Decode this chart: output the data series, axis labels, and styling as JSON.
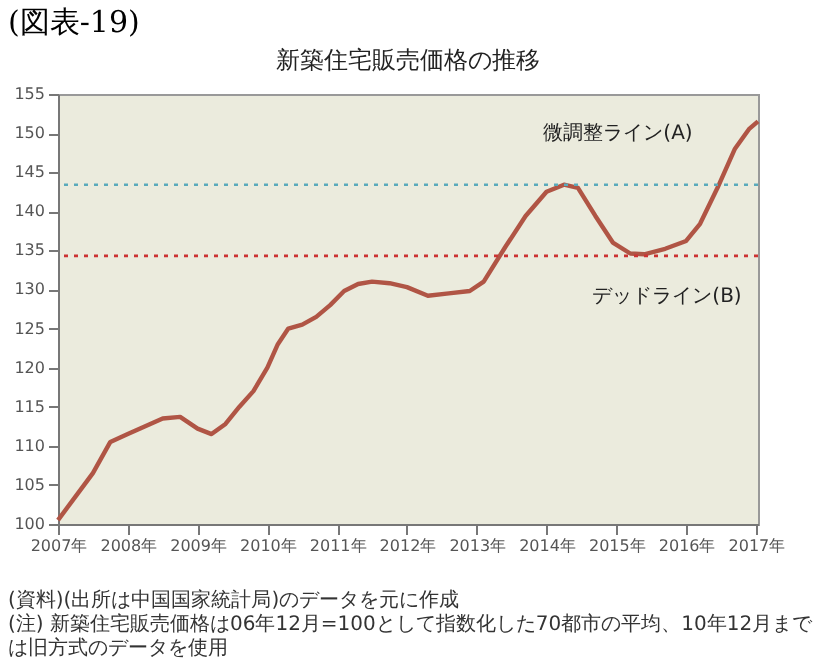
{
  "chart_data": {
    "type": "line",
    "title": "新築住宅販売価格の推移",
    "annotations": [
      "(図表-19)",
      "(資料)(出所は中国国家統計局)のデータを元に作成",
      "(注) 新築住宅販売価格は06年12月=100として指数化した70都市の平均、10年12月までは旧方式のデータを使用"
    ],
    "x": [
      2007.0,
      2007.25,
      2007.5,
      2007.75,
      2008.0,
      2008.25,
      2008.5,
      2008.75,
      2009.0,
      2009.2,
      2009.4,
      2009.6,
      2009.8,
      2010.0,
      2010.15,
      2010.3,
      2010.5,
      2010.7,
      2010.9,
      2011.1,
      2011.3,
      2011.5,
      2011.75,
      2012.0,
      2012.3,
      2012.6,
      2012.9,
      2013.1,
      2013.4,
      2013.7,
      2014.0,
      2014.25,
      2014.45,
      2014.7,
      2014.95,
      2015.2,
      2015.4,
      2015.7,
      2016.0,
      2016.2,
      2016.45,
      2016.7,
      2016.9,
      2017.03
    ],
    "series": [
      {
        "color": "#b05545",
        "values": [
          100.5,
          103.5,
          106.5,
          110.5,
          111.5,
          112.5,
          113.5,
          113.7,
          112.2,
          111.5,
          112.8,
          115,
          117,
          120,
          123,
          125,
          125.5,
          126.5,
          128,
          129.8,
          130.7,
          131,
          130.8,
          130.3,
          129.2,
          129.5,
          129.8,
          131,
          135.3,
          139.4,
          142.5,
          143.4,
          143,
          139.4,
          136,
          134.6,
          134.5,
          135.2,
          136.2,
          138.4,
          143,
          148,
          150.5,
          151.5
        ]
      }
    ],
    "ref_lines": [
      {
        "axis": "y",
        "value": 143.4,
        "label": "微調整ライン(A)",
        "color": "#5aaabb",
        "line_style": "dotted"
      },
      {
        "axis": "y",
        "value": 134.3,
        "label": "デッドライン(B)",
        "color": "#cc3333",
        "line_style": "dotted"
      }
    ],
    "xlim": [
      2007,
      2017.03
    ],
    "xticks": [
      {
        "value": 2007,
        "label": "2007年"
      },
      {
        "value": 2008,
        "label": "2008年"
      },
      {
        "value": 2009,
        "label": "2009年"
      },
      {
        "value": 2010,
        "label": "2010年"
      },
      {
        "value": 2011,
        "label": "2011年"
      },
      {
        "value": 2012,
        "label": "2012年"
      },
      {
        "value": 2013,
        "label": "2013年"
      },
      {
        "value": 2014,
        "label": "2014年"
      },
      {
        "value": 2015,
        "label": "2015年"
      },
      {
        "value": 2016,
        "label": "2016年"
      },
      {
        "value": 2017,
        "label": "2017年"
      }
    ],
    "ylim": [
      100,
      155
    ],
    "yticks": [
      100,
      105,
      110,
      115,
      120,
      125,
      130,
      135,
      140,
      145,
      150,
      155
    ],
    "grid": false,
    "marker": "none",
    "line_style": "solid"
  }
}
